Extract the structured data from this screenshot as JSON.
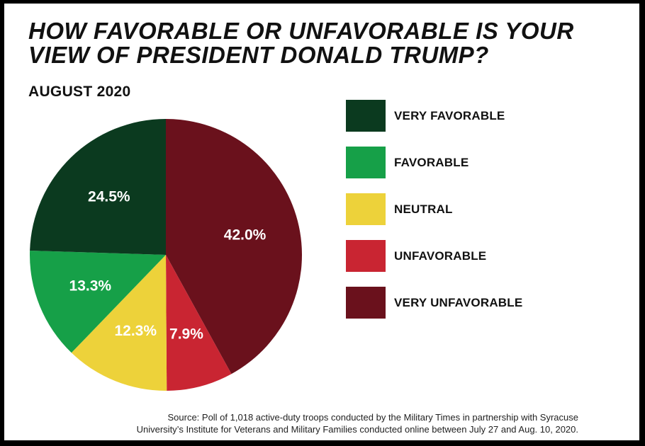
{
  "title_lines": [
    "HOW FAVORABLE OR UNFAVORABLE IS YOUR",
    "VIEW OF PRESIDENT DONALD TRUMP?"
  ],
  "subtitle": "AUGUST 2020",
  "source_lines": [
    "Source: Poll of 1,018 active-duty troops conducted by the Military Times in partnership with Syracuse",
    "University’s Institute for Veterans and Military Families conducted online between July 27 and Aug. 10, 2020."
  ],
  "chart_data": {
    "type": "pie",
    "legend_position": "right",
    "slices": [
      {
        "name": "VERY UNFAVORABLE",
        "value": 42.0,
        "label": "42.0%",
        "color": "#6a111c"
      },
      {
        "name": "UNFAVORABLE",
        "value": 7.9,
        "label": "7.9%",
        "color": "#c92532"
      },
      {
        "name": "NEUTRAL",
        "value": 12.3,
        "label": "12.3%",
        "color": "#edd23a"
      },
      {
        "name": "FAVORABLE",
        "value": 13.3,
        "label": "13.3%",
        "color": "#16a048"
      },
      {
        "name": "VERY FAVORABLE",
        "value": 24.5,
        "label": "24.5%",
        "color": "#0b3a1f"
      }
    ],
    "legend_order": [
      "VERY FAVORABLE",
      "FAVORABLE",
      "NEUTRAL",
      "UNFAVORABLE",
      "VERY UNFAVORABLE"
    ]
  }
}
